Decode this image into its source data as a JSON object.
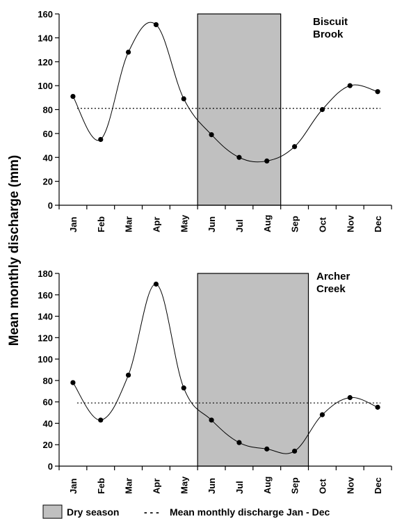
{
  "ylabel": "Mean monthly discharge (mm)",
  "legend": {
    "dry_season": "Dry season",
    "mean_line_marker": "- - -",
    "mean_line": "Mean monthly discharge Jan - Dec"
  },
  "colors": {
    "dry_season_fill": "#c0c0c0",
    "line": "#000000"
  },
  "chart_data": [
    {
      "type": "line",
      "title": "Biscuit Brook",
      "title_lines": [
        "Biscuit",
        "Brook"
      ],
      "categories": [
        "Jan",
        "Feb",
        "Mar",
        "Apr",
        "May",
        "Jun",
        "Jul",
        "Aug",
        "Sep",
        "Oct",
        "Nov",
        "Dec"
      ],
      "series": [
        {
          "values": [
            91,
            55,
            128,
            151,
            89,
            59,
            40,
            37,
            49,
            80,
            100,
            95
          ]
        }
      ],
      "mean_line": 81,
      "dry_season": {
        "start": "Jun",
        "end": "Aug"
      },
      "ylim": [
        0,
        160
      ],
      "yticks": [
        0,
        20,
        40,
        60,
        80,
        100,
        120,
        140,
        160
      ],
      "ylabel": "Mean monthly discharge (mm)",
      "grid": false
    },
    {
      "type": "line",
      "title": "Archer Creek",
      "title_lines": [
        "Archer",
        "Creek"
      ],
      "categories": [
        "Jan",
        "Feb",
        "Mar",
        "Apr",
        "May",
        "Jun",
        "Jul",
        "Aug",
        "Sep",
        "Oct",
        "Nov",
        "Dec"
      ],
      "series": [
        {
          "values": [
            78,
            43,
            85,
            170,
            73,
            43,
            22,
            16,
            14,
            48,
            64,
            55
          ]
        }
      ],
      "mean_line": 59,
      "dry_season": {
        "start": "Jun",
        "end": "Sep"
      },
      "ylim": [
        0,
        180
      ],
      "yticks": [
        0,
        20,
        40,
        60,
        80,
        100,
        120,
        140,
        160,
        180
      ],
      "ylabel": "Mean monthly discharge (mm)",
      "grid": false
    }
  ]
}
